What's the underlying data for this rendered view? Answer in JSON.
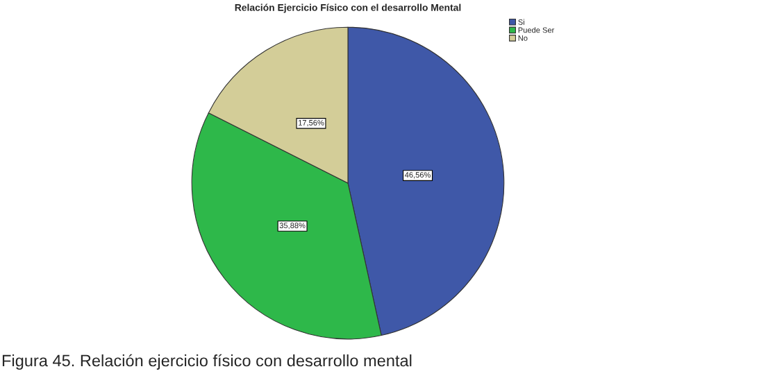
{
  "chart_data": {
    "type": "pie",
    "title": "Relación Ejercicio Físico con el desarrollo Mental",
    "categories": [
      "Si",
      "Puede Ser",
      "No"
    ],
    "values": [
      46.56,
      35.88,
      17.56
    ],
    "value_labels": [
      "46,56%",
      "35,88%",
      "17,56%"
    ],
    "colors": [
      "#3f58a8",
      "#2eb84a",
      "#d3cd98"
    ],
    "legend": "top right",
    "annotations": [
      "Figura 45. Relación ejercicio físico con desarrollo mental"
    ]
  }
}
